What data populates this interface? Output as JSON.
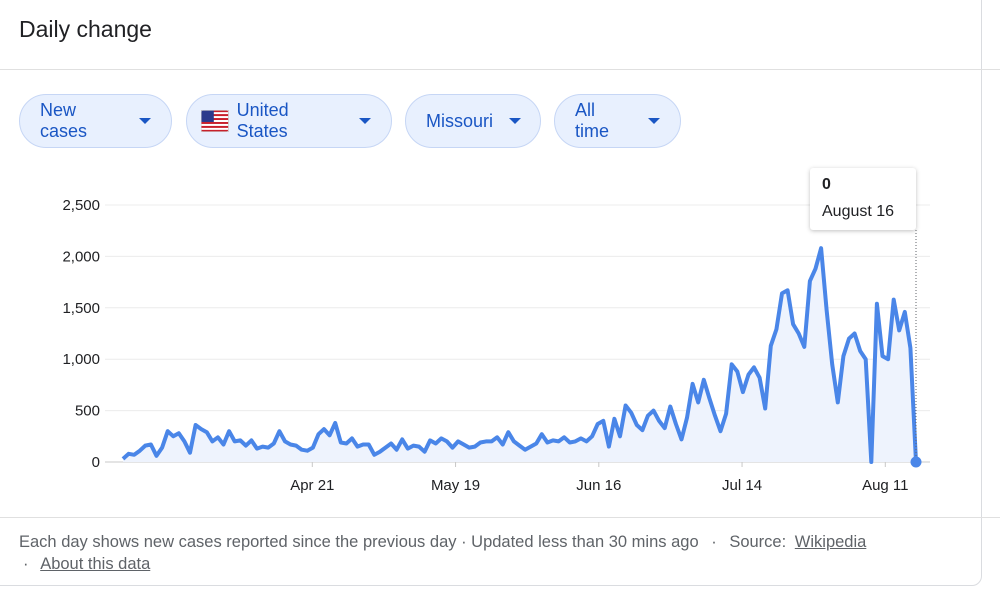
{
  "header": {
    "title": "Daily change"
  },
  "filters": [
    {
      "label": "New cases",
      "icon": ""
    },
    {
      "label": "United States",
      "icon": "us-flag-icon"
    },
    {
      "label": "Missouri",
      "icon": ""
    },
    {
      "label": "All time",
      "icon": ""
    }
  ],
  "tooltip": {
    "value": "0",
    "date": "August 16"
  },
  "footer": {
    "note": "Each day shows new cases reported since the previous day · Updated less than 30 mins ago",
    "sep": "·",
    "source_label": "Source:",
    "source_link": "Wikipedia",
    "about_sep": "·",
    "about_link": "About this data"
  },
  "colors": {
    "line": "#4a86e8",
    "area": "#eef3fd",
    "accent": "#1a56c4"
  },
  "chart_data": {
    "type": "line",
    "title": "",
    "xlabel": "",
    "ylabel": "",
    "ylim": [
      0,
      2500
    ],
    "yticks": [
      "0",
      "500",
      "1,000",
      "1,500",
      "2,000",
      "2,500"
    ],
    "xticks": [
      "Apr 21",
      "May 19",
      "Jun 16",
      "Jul 14",
      "Aug 11"
    ],
    "grid": true,
    "series": [
      {
        "values": [
          30,
          80,
          70,
          110,
          160,
          170,
          60,
          140,
          300,
          250,
          280,
          200,
          90,
          360,
          320,
          290,
          200,
          240,
          170,
          300,
          200,
          210,
          160,
          210,
          130,
          150,
          140,
          180,
          300,
          200,
          170,
          160,
          120,
          110,
          140,
          270,
          320,
          260,
          380,
          190,
          180,
          230,
          150,
          170,
          170,
          70,
          100,
          140,
          180,
          120,
          220,
          130,
          160,
          150,
          100,
          210,
          180,
          230,
          200,
          140,
          200,
          170,
          140,
          150,
          190,
          200,
          200,
          240,
          170,
          290,
          200,
          160,
          120,
          150,
          180,
          270,
          190,
          210,
          200,
          240,
          190,
          200,
          230,
          200,
          250,
          370,
          400,
          150,
          420,
          250,
          550,
          480,
          360,
          310,
          450,
          500,
          400,
          330,
          540,
          370,
          220,
          430,
          760,
          580,
          800,
          620,
          450,
          300,
          470,
          950,
          880,
          680,
          850,
          920,
          820,
          520,
          1130,
          1290,
          1640,
          1670,
          1340,
          1250,
          1120,
          1760,
          1880,
          2080,
          1480,
          950,
          580,
          1030,
          1200,
          1250,
          1080,
          1000,
          0,
          1540,
          1030,
          1000,
          1580,
          1280,
          1460,
          1110,
          0
        ]
      }
    ]
  }
}
